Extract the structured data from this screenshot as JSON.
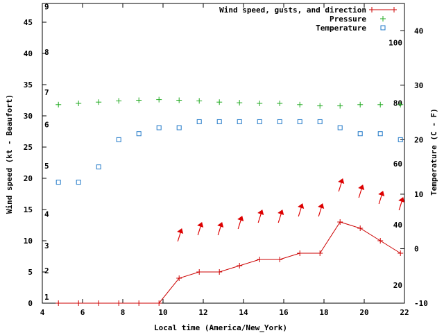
{
  "chart_data": {
    "type": "line",
    "xlabel": "Local time (America/New_York)",
    "ylabel_left": "Wind speed (kt - Beaufort)",
    "ylabel_right": "Temperature (C - F)",
    "xlim": [
      4,
      22
    ],
    "x_ticks": [
      "4",
      "6",
      "8",
      "10",
      "12",
      "14",
      "16",
      "18",
      "20",
      "22"
    ],
    "ylim_left": [
      0,
      48
    ],
    "y_ticks_left": [
      "0",
      "5",
      "10",
      "15",
      "20",
      "25",
      "30",
      "35",
      "40",
      "45"
    ],
    "beaufort_ticks": [
      {
        "label": "1",
        "kt": 1
      },
      {
        "label": "2",
        "kt": 5.2
      },
      {
        "label": "3",
        "kt": 9.2
      },
      {
        "label": "4",
        "kt": 14.3
      },
      {
        "label": "5",
        "kt": 22
      },
      {
        "label": "6",
        "kt": 28.6
      },
      {
        "label": "7",
        "kt": 33.8
      },
      {
        "label": "8",
        "kt": 40.2
      },
      {
        "label": "9",
        "kt": 47.5
      }
    ],
    "ylim_right": [
      -10,
      45
    ],
    "y_ticks_right_c": [
      "-10",
      "0",
      "10",
      "20",
      "30",
      "40"
    ],
    "fahrenheit_ticks": [
      {
        "label": "20",
        "c": -6.7
      },
      {
        "label": "40",
        "c": 4.4
      },
      {
        "label": "60",
        "c": 15.6
      },
      {
        "label": "80",
        "c": 26.7
      },
      {
        "label": "100",
        "c": 37.8
      }
    ],
    "legend": {
      "position": "top-right",
      "entries": [
        {
          "label": "Wind speed, gusts, and direction",
          "color": "#cc0000",
          "marker": "+"
        },
        {
          "label": "Pressure",
          "color": "#22aa22",
          "marker": "+"
        },
        {
          "label": "Temperature",
          "color": "#1f78c8",
          "marker": "square"
        }
      ]
    },
    "series": [
      {
        "name": "Wind speed, gusts, and direction",
        "axis": "left",
        "color": "#cc0000",
        "x": [
          4.8,
          5.8,
          6.8,
          7.8,
          8.8,
          9.8,
          10.8,
          11.8,
          12.8,
          13.8,
          14.8,
          15.8,
          16.8,
          17.8,
          18.8,
          19.8,
          20.8,
          21.8
        ],
        "y": [
          0,
          0,
          0,
          0,
          0,
          0,
          4,
          5,
          5,
          6,
          7,
          7,
          8,
          8,
          13,
          12,
          10,
          8
        ]
      },
      {
        "name": "Pressure",
        "axis": "left",
        "color": "#22aa22",
        "x": [
          4.8,
          5.8,
          6.8,
          7.8,
          8.8,
          9.8,
          10.8,
          11.8,
          12.8,
          13.8,
          14.8,
          15.8,
          16.8,
          17.8,
          18.8,
          19.8,
          20.8,
          21.8
        ],
        "y": [
          31.8,
          32.0,
          32.2,
          32.4,
          32.5,
          32.6,
          32.5,
          32.4,
          32.2,
          32.1,
          32.0,
          32.0,
          31.8,
          31.6,
          31.6,
          31.8,
          31.8,
          31.8
        ]
      },
      {
        "name": "Temperature",
        "axis": "right",
        "color": "#1f78c8",
        "x": [
          4.8,
          5.8,
          6.8,
          7.8,
          8.8,
          9.8,
          10.8,
          11.8,
          12.8,
          13.8,
          14.8,
          15.8,
          16.8,
          17.8,
          18.8,
          19.8,
          20.8,
          21.8
        ],
        "y": [
          12.2,
          12.2,
          15.0,
          20.0,
          21.1,
          22.2,
          22.2,
          23.3,
          23.3,
          23.3,
          23.3,
          23.3,
          23.3,
          23.3,
          22.2,
          21.1,
          21.1,
          20.0
        ]
      }
    ],
    "wind_direction_arrows": {
      "color": "#dd0000",
      "x": [
        10.8,
        11.8,
        12.8,
        13.8,
        14.8,
        15.8,
        16.8,
        17.8,
        18.8,
        19.8,
        20.8,
        21.8
      ],
      "gust_kt": [
        11,
        12,
        12,
        13,
        14,
        14,
        15,
        15,
        19,
        18,
        17,
        16
      ]
    }
  }
}
